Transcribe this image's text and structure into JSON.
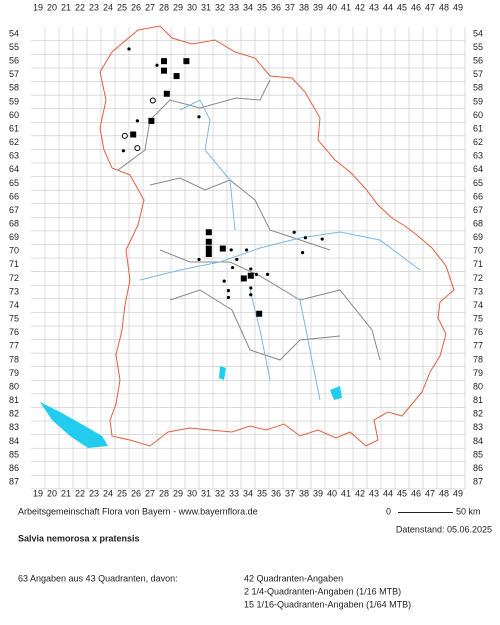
{
  "map": {
    "columns": [
      19,
      20,
      21,
      22,
      23,
      24,
      25,
      26,
      27,
      28,
      29,
      30,
      31,
      32,
      33,
      34,
      35,
      36,
      37,
      38,
      39,
      40,
      41,
      42,
      43,
      44,
      45,
      46,
      47,
      48,
      49
    ],
    "rows": [
      54,
      55,
      56,
      57,
      58,
      59,
      60,
      61,
      62,
      63,
      64,
      65,
      66,
      67,
      68,
      69,
      70,
      71,
      72,
      73,
      74,
      75,
      76,
      77,
      78,
      79,
      80,
      81,
      82,
      83,
      84,
      85,
      86,
      87
    ]
  },
  "footer": {
    "credit": "Arbeitsgemeinschaft Flora von Bayern - www.bayernflora.de",
    "scale_start": "0",
    "scale_end": "50 km",
    "date": "Datenstand: 05.06.2025"
  },
  "species": "Salvia nemorosa x pratensis",
  "summary": {
    "total": "63 Angaben aus 43 Quadranten, davon:",
    "lines": [
      "42 Quadranten-Angaben",
      "2 1/4-Quadranten-Angaben (1/16 MTB)",
      "15 1/16-Quadranten-Angaben (1/64 MTB)"
    ]
  }
}
